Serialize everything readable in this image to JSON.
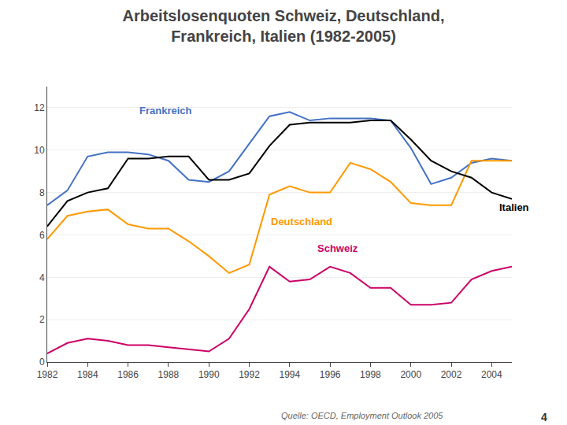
{
  "chart_data": {
    "type": "line",
    "title": "Arbeitslosenquoten Schweiz, Deutschland,\nFrankreich, Italien (1982-2005)",
    "x": [
      1982,
      1983,
      1984,
      1985,
      1986,
      1987,
      1988,
      1989,
      1990,
      1991,
      1992,
      1993,
      1994,
      1995,
      1996,
      1997,
      1998,
      1999,
      2000,
      2001,
      2002,
      2003,
      2004,
      2005
    ],
    "series": [
      {
        "name": "Frankreich",
        "color": "#4472C4",
        "values": [
          7.4,
          8.1,
          9.7,
          9.9,
          9.9,
          9.8,
          9.5,
          8.6,
          8.5,
          9.0,
          10.3,
          11.6,
          11.8,
          11.4,
          11.5,
          11.5,
          11.5,
          11.4,
          10.1,
          8.4,
          8.7,
          9.4,
          9.6,
          9.5
        ]
      },
      {
        "name": "Deutschland",
        "color": "#FF9900",
        "values": [
          5.8,
          6.9,
          7.1,
          7.2,
          6.5,
          6.3,
          6.3,
          5.7,
          5.0,
          4.2,
          4.6,
          7.9,
          8.3,
          8.0,
          8.0,
          9.4,
          9.1,
          8.5,
          7.5,
          7.4,
          7.4,
          9.5,
          9.5,
          9.5
        ]
      },
      {
        "name": "Italien",
        "color": "#000000",
        "values": [
          6.4,
          7.6,
          8.0,
          8.2,
          9.6,
          9.6,
          9.7,
          9.7,
          8.6,
          8.6,
          8.9,
          10.2,
          11.2,
          11.3,
          11.3,
          11.3,
          11.4,
          11.4,
          10.5,
          9.5,
          9.0,
          8.7,
          8.0,
          7.7
        ]
      },
      {
        "name": "Schweiz",
        "color": "#CC0066",
        "values": [
          0.4,
          0.9,
          1.1,
          1.0,
          0.8,
          0.8,
          0.7,
          0.6,
          0.5,
          1.1,
          2.5,
          4.5,
          3.8,
          3.9,
          4.5,
          4.2,
          3.5,
          3.5,
          2.7,
          2.7,
          2.8,
          3.9,
          4.3,
          4.5
        ]
      }
    ],
    "xlim": [
      1982,
      2005
    ],
    "xticks": [
      1982,
      1984,
      1986,
      1988,
      1990,
      1992,
      1994,
      1996,
      1998,
      2000,
      2002,
      2004
    ],
    "ylim": [
      0,
      13
    ],
    "yticks": [
      0,
      2,
      4,
      6,
      8,
      10,
      12
    ],
    "grid": "y",
    "annotations": [
      {
        "text": "Frankreich",
        "x": 1986.5,
        "y": 11.5
      },
      {
        "text": "Deutschland",
        "x": 1993.0,
        "y": 7.0
      },
      {
        "text": "Italien",
        "x": 2004.3,
        "y": 7.3
      },
      {
        "text": "Schweiz",
        "x": 1995.3,
        "y": 5.0
      },
      {
        "text": "Quelle: OECD, Employment Outlook 2005"
      },
      {
        "text": "4"
      }
    ]
  }
}
